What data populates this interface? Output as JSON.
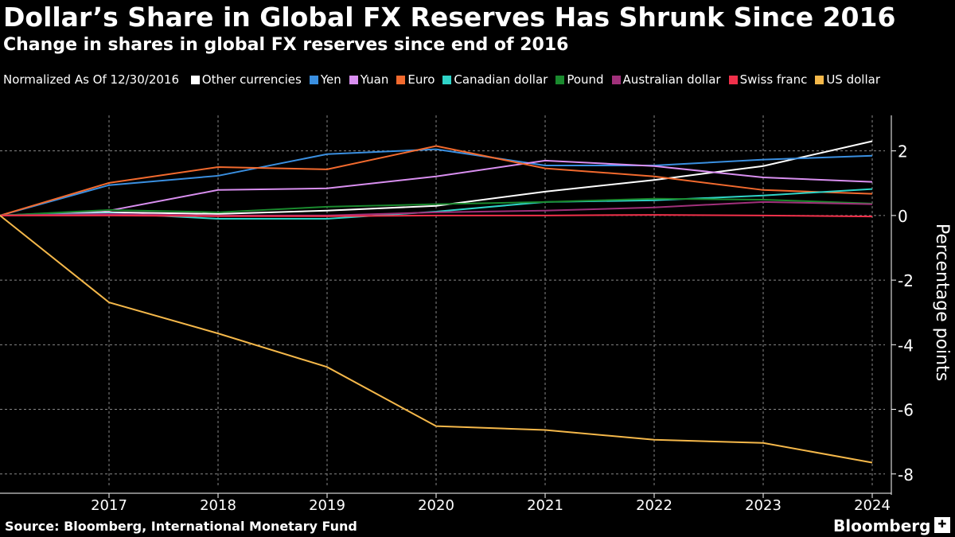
{
  "header": {
    "title": "Dollar’s Share in Global FX Reserves Has Shrunk Since 2016",
    "subtitle": "Change in shares in global FX reserves since end of 2016"
  },
  "footer": {
    "source": "Source: Bloomberg, International Monetary Fund",
    "brand": "Bloomberg",
    "brand_icon": "bloomberg-logo-icon"
  },
  "chart_data": {
    "type": "line",
    "title": "Dollar’s Share in Global FX Reserves Has Shrunk Since 2016",
    "subtitle": "Change in shares in global FX reserves since end of 2016",
    "legend_note": "Normalized As Of 12/30/2016",
    "legend_placement": "top",
    "ylabel": "Percentage points",
    "xlabel": "",
    "x": [
      "2016-12-30",
      "2017",
      "2018",
      "2019",
      "2020",
      "2021",
      "2022",
      "2023",
      "2024"
    ],
    "x_tick_labels": [
      "2017",
      "2018",
      "2019",
      "2020",
      "2021",
      "2022",
      "2023",
      "2024"
    ],
    "y_ticks": [
      2,
      0,
      -2,
      -4,
      -6,
      -8
    ],
    "ylim": [
      -8.4,
      3.1
    ],
    "grid": true,
    "series": [
      {
        "name": "Other currencies",
        "color": "#ffffff",
        "values": [
          0,
          0.1,
          0.05,
          0.15,
          0.3,
          0.74,
          1.1,
          1.53,
          2.3
        ]
      },
      {
        "name": "Yen",
        "color": "#3a8fe0",
        "values": [
          0,
          0.94,
          1.23,
          1.9,
          2.05,
          1.55,
          1.55,
          1.73,
          1.85
        ]
      },
      {
        "name": "Yuan",
        "color": "#d98ff0",
        "values": [
          0,
          0.15,
          0.79,
          0.84,
          1.21,
          1.7,
          1.53,
          1.18,
          1.04
        ]
      },
      {
        "name": "Euro",
        "color": "#f26a2e",
        "values": [
          0,
          1.01,
          1.5,
          1.43,
          2.15,
          1.46,
          1.21,
          0.79,
          0.67
        ]
      },
      {
        "name": "Canadian dollar",
        "color": "#2fd4c8",
        "values": [
          0,
          0.07,
          -0.1,
          -0.1,
          0.12,
          0.42,
          0.47,
          0.62,
          0.82
        ]
      },
      {
        "name": "Pound",
        "color": "#1a8a2e",
        "values": [
          0,
          0.17,
          0.1,
          0.27,
          0.35,
          0.42,
          0.52,
          0.49,
          0.37
        ]
      },
      {
        "name": "Australian dollar",
        "color": "#a0307a",
        "values": [
          0,
          0.05,
          0,
          0,
          0.1,
          0.15,
          0.25,
          0.42,
          0.35
        ]
      },
      {
        "name": "Swiss franc",
        "color": "#f0304a",
        "values": [
          0,
          0,
          -0.02,
          -0.02,
          0,
          0,
          0.02,
          0,
          -0.03
        ]
      },
      {
        "name": "US dollar",
        "color": "#f5b84a",
        "values": [
          0,
          -2.69,
          -3.65,
          -4.69,
          -6.52,
          -6.64,
          -6.94,
          -7.04,
          -7.65
        ]
      }
    ]
  }
}
